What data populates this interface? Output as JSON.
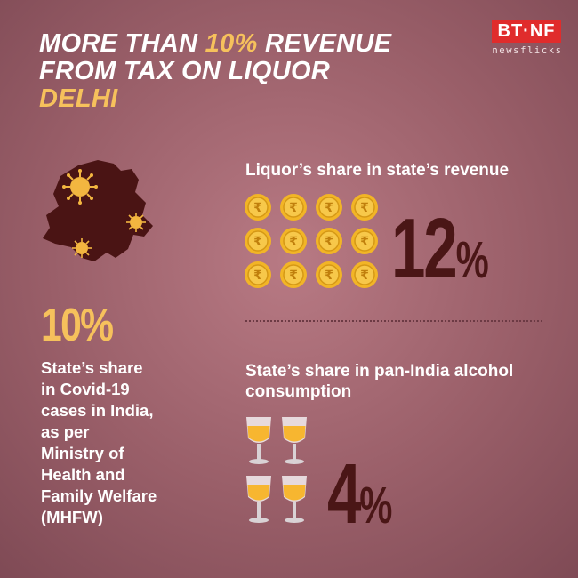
{
  "title": {
    "line1_prefix": "MORE THAN ",
    "line1_accent": "10%",
    "line1_suffix": " REVENUE",
    "line2": "FROM TAX ON LIQUOR",
    "line3": "DELHI"
  },
  "logo": {
    "brand": "BT·NF",
    "sub": "newsflicks"
  },
  "left": {
    "stat": "10%",
    "lines": [
      "State’s share",
      "in Covid-19",
      "cases in India,",
      "as per",
      "Ministry of",
      "Health and",
      "Family Welfare",
      "(MHFW)"
    ]
  },
  "revenue": {
    "label": "Liquor’s share in state’s revenue",
    "stat_number": "12",
    "stat_unit": "%",
    "coin_count": 12,
    "coin_symbol": "₹"
  },
  "consumption": {
    "label_line1": "State’s share in pan-India alcohol",
    "label_line2": "consumption",
    "stat_number": "4",
    "stat_unit": "%",
    "glass_count": 4
  },
  "colors": {
    "accent_yellow": "#f6c15c",
    "stat_dark": "#4a1616",
    "map_fill": "#4a1414",
    "virus": "#f3b640",
    "coin": "#f2b526",
    "glass_liquid": "#f7b630",
    "logo_red": "#e02c2c"
  },
  "icons": {
    "map": "delhi-map-icon",
    "virus": "coronavirus-icon",
    "coin": "rupee-coin-icon",
    "glass": "wine-glass-icon"
  }
}
